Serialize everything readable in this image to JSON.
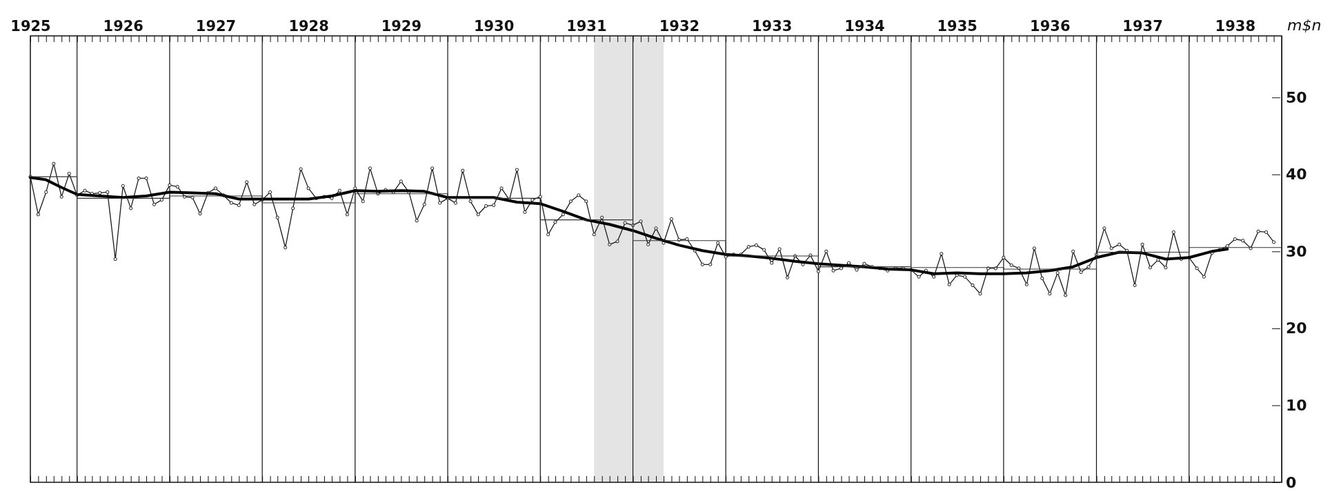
{
  "chart_data": {
    "type": "line",
    "ylabel": "m$n",
    "x": [
      "1925-07",
      "1925-08",
      "1925-09",
      "1925-10",
      "1925-11",
      "1925-12",
      "1926-01",
      "1926-02",
      "1926-03",
      "1926-04",
      "1926-05",
      "1926-06",
      "1926-07",
      "1926-08",
      "1926-09",
      "1926-10",
      "1926-11",
      "1926-12",
      "1927-01",
      "1927-02",
      "1927-03",
      "1927-04",
      "1927-05",
      "1927-06",
      "1927-07",
      "1927-08",
      "1927-09",
      "1927-10",
      "1927-11",
      "1927-12",
      "1928-01",
      "1928-02",
      "1928-03",
      "1928-04",
      "1928-05",
      "1928-06",
      "1928-07",
      "1928-08",
      "1928-09",
      "1928-10",
      "1928-11",
      "1928-12",
      "1929-01",
      "1929-02",
      "1929-03",
      "1929-04",
      "1929-05",
      "1929-06",
      "1929-07",
      "1929-08",
      "1929-09",
      "1929-10",
      "1929-11",
      "1929-12",
      "1930-01",
      "1930-02",
      "1930-03",
      "1930-04",
      "1930-05",
      "1930-06",
      "1930-07",
      "1930-08",
      "1930-09",
      "1930-10",
      "1930-11",
      "1930-12",
      "1931-01",
      "1931-02",
      "1931-03",
      "1931-04",
      "1931-05",
      "1931-06",
      "1931-07",
      "1931-08",
      "1931-09",
      "1931-10",
      "1931-11",
      "1931-12",
      "1932-01",
      "1932-02",
      "1932-03",
      "1932-04",
      "1932-05",
      "1932-06",
      "1932-07",
      "1932-08",
      "1932-09",
      "1932-10",
      "1932-11",
      "1932-12",
      "1933-01",
      "1933-02",
      "1933-03",
      "1933-04",
      "1933-05",
      "1933-06",
      "1933-07",
      "1933-08",
      "1933-09",
      "1933-10",
      "1933-11",
      "1933-12",
      "1934-01",
      "1934-02",
      "1934-03",
      "1934-04",
      "1934-05",
      "1934-06",
      "1934-07",
      "1934-08",
      "1934-09",
      "1934-10",
      "1934-11",
      "1934-12",
      "1935-01",
      "1935-02",
      "1935-03",
      "1935-04",
      "1935-05",
      "1935-06",
      "1935-07",
      "1935-08",
      "1935-09",
      "1935-10",
      "1935-11",
      "1935-12",
      "1936-01",
      "1936-02",
      "1936-03",
      "1936-04",
      "1936-05",
      "1936-06",
      "1936-07",
      "1936-08",
      "1936-09",
      "1936-10",
      "1936-11",
      "1936-12",
      "1937-01",
      "1937-02",
      "1937-03",
      "1937-04",
      "1937-05",
      "1937-06",
      "1937-07",
      "1937-08",
      "1937-09",
      "1937-10",
      "1937-11",
      "1937-12",
      "1938-01",
      "1938-02",
      "1938-03",
      "1938-04",
      "1938-05",
      "1938-06",
      "1938-07",
      "1938-08",
      "1938-09",
      "1938-10",
      "1938-11",
      "1938-12"
    ],
    "series": [
      {
        "marker": "circle",
        "color": "#1a1a1a",
        "values": [
          39.7,
          34.8,
          37.7,
          41.4,
          37.1,
          40.1,
          37.3,
          37.9,
          37.5,
          37.6,
          37.7,
          29.0,
          38.5,
          35.6,
          39.5,
          39.5,
          36.1,
          36.7,
          38.6,
          38.4,
          37.1,
          37.0,
          34.9,
          37.6,
          38.2,
          37.3,
          36.3,
          36.0,
          39.0,
          36.1,
          36.7,
          37.7,
          34.4,
          30.5,
          35.6,
          40.7,
          38.2,
          36.9,
          37.1,
          36.9,
          37.9,
          34.8,
          38.2,
          36.5,
          40.8,
          37.5,
          38.0,
          37.7,
          39.1,
          37.7,
          34.0,
          36.1,
          40.8,
          36.3,
          36.9,
          36.3,
          40.5,
          36.5,
          34.8,
          35.9,
          36.0,
          38.2,
          36.7,
          40.6,
          35.1,
          36.7,
          37.1,
          32.2,
          33.8,
          34.8,
          36.5,
          37.3,
          36.5,
          32.2,
          34.4,
          30.9,
          31.3,
          33.7,
          33.4,
          33.9,
          30.9,
          33.0,
          31.1,
          34.2,
          31.5,
          31.6,
          30.1,
          28.3,
          28.3,
          31.1,
          29.3,
          29.6,
          29.6,
          30.6,
          30.8,
          30.2,
          28.5,
          30.3,
          26.6,
          29.4,
          28.3,
          29.5,
          27.4,
          30.0,
          27.5,
          27.8,
          28.5,
          27.6,
          28.4,
          28.0,
          27.8,
          27.5,
          27.8,
          27.8,
          27.6,
          26.7,
          27.5,
          26.7,
          29.7,
          25.7,
          26.9,
          26.7,
          25.6,
          24.5,
          27.8,
          27.8,
          29.2,
          28.2,
          27.8,
          25.7,
          30.4,
          26.5,
          24.5,
          27.2,
          24.3,
          30.0,
          27.3,
          28.0,
          29.6,
          33.0,
          30.4,
          30.9,
          30.1,
          25.6,
          30.9,
          27.9,
          28.9,
          27.9,
          32.5,
          29.0,
          29.2,
          27.8,
          26.7,
          29.8,
          30.2,
          30.7,
          31.6,
          31.4,
          30.4,
          32.6,
          32.5,
          31.2
        ]
      },
      {
        "marker": "none",
        "color": "#000000",
        "x": [
          "1925-07",
          "1925-09",
          "1925-11",
          "1926-01",
          "1926-04",
          "1926-07",
          "1926-10",
          "1927-01",
          "1927-04",
          "1927-07",
          "1927-10",
          "1928-01",
          "1928-04",
          "1928-07",
          "1928-10",
          "1929-01",
          "1929-04",
          "1929-07",
          "1929-10",
          "1930-01",
          "1930-04",
          "1930-07",
          "1930-10",
          "1931-01",
          "1931-04",
          "1931-07",
          "1931-10",
          "1932-01",
          "1932-04",
          "1932-07",
          "1932-10",
          "1933-01",
          "1933-04",
          "1933-07",
          "1933-10",
          "1934-01",
          "1934-04",
          "1934-07",
          "1934-10",
          "1935-01",
          "1935-04",
          "1935-07",
          "1935-10",
          "1936-01",
          "1936-04",
          "1936-07",
          "1936-10",
          "1937-01",
          "1937-04",
          "1937-07",
          "1937-10",
          "1938-01",
          "1938-04",
          "1938-06"
        ],
        "values": [
          39.6,
          39.3,
          38.3,
          37.4,
          37.2,
          37.0,
          37.2,
          37.7,
          37.6,
          37.5,
          36.8,
          36.8,
          36.8,
          36.8,
          37.2,
          37.9,
          37.8,
          37.9,
          37.8,
          37.0,
          37.0,
          37.0,
          36.4,
          36.2,
          35.2,
          34.1,
          33.5,
          32.7,
          31.7,
          30.8,
          30.1,
          29.6,
          29.4,
          29.1,
          28.7,
          28.4,
          28.2,
          28.0,
          27.7,
          27.6,
          27.1,
          27.2,
          27.1,
          27.1,
          27.2,
          27.5,
          28.0,
          29.2,
          29.9,
          29.8,
          29.0,
          29.2,
          30.0,
          30.3
        ]
      },
      {
        "type": "step",
        "marker": "none",
        "color": "#333333",
        "x": [
          "1925-07",
          "1926-01",
          "1927-01",
          "1928-01",
          "1929-01",
          "1930-01",
          "1931-01",
          "1932-01",
          "1933-01",
          "1934-01",
          "1935-01",
          "1936-01",
          "1937-01",
          "1938-01",
          "1939-01"
        ],
        "values": [
          39.7,
          36.9,
          37.2,
          36.3,
          37.5,
          36.9,
          34.1,
          31.4,
          29.4,
          28.0,
          27.9,
          27.7,
          29.9,
          30.5,
          30.5
        ]
      }
    ],
    "xlim": [
      "1925-07",
      "1939-01"
    ],
    "xticks": [
      {
        "value": "1925-07",
        "label": "1925"
      },
      {
        "value": "1925-08",
        "label": null
      },
      {
        "value": "1925-09",
        "label": null
      },
      {
        "value": "1925-10",
        "label": null
      },
      {
        "value": "1925-11",
        "label": null
      },
      {
        "value": "1925-12",
        "label": null
      },
      {
        "value": "1926-01",
        "label": null
      },
      {
        "value": "1926-02",
        "label": null
      },
      {
        "value": "1926-03",
        "label": null
      },
      {
        "value": "1926-04",
        "label": null
      },
      {
        "value": "1926-05",
        "label": null
      },
      {
        "value": "1926-06",
        "label": null
      },
      {
        "value": "1926-07",
        "label": "1926"
      },
      {
        "value": "1926-08",
        "label": null
      },
      {
        "value": "1926-09",
        "label": null
      },
      {
        "value": "1926-10",
        "label": null
      },
      {
        "value": "1926-11",
        "label": null
      },
      {
        "value": "1926-12",
        "label": null
      },
      {
        "value": "1927-01",
        "label": null
      },
      {
        "value": "1927-02",
        "label": null
      },
      {
        "value": "1927-03",
        "label": null
      },
      {
        "value": "1927-04",
        "label": null
      },
      {
        "value": "1927-05",
        "label": null
      },
      {
        "value": "1927-06",
        "label": null
      },
      {
        "value": "1927-07",
        "label": "1927"
      },
      {
        "value": "1927-08",
        "label": null
      },
      {
        "value": "1927-09",
        "label": null
      },
      {
        "value": "1927-10",
        "label": null
      },
      {
        "value": "1927-11",
        "label": null
      },
      {
        "value": "1927-12",
        "label": null
      },
      {
        "value": "1928-01",
        "label": null
      },
      {
        "value": "1928-02",
        "label": null
      },
      {
        "value": "1928-03",
        "label": null
      },
      {
        "value": "1928-04",
        "label": null
      },
      {
        "value": "1928-05",
        "label": null
      },
      {
        "value": "1928-06",
        "label": null
      },
      {
        "value": "1928-07",
        "label": "1928"
      },
      {
        "value": "1928-08",
        "label": null
      },
      {
        "value": "1928-09",
        "label": null
      },
      {
        "value": "1928-10",
        "label": null
      },
      {
        "value": "1928-11",
        "label": null
      },
      {
        "value": "1928-12",
        "label": null
      },
      {
        "value": "1929-01",
        "label": null
      },
      {
        "value": "1929-02",
        "label": null
      },
      {
        "value": "1929-03",
        "label": null
      },
      {
        "value": "1929-04",
        "label": null
      },
      {
        "value": "1929-05",
        "label": null
      },
      {
        "value": "1929-06",
        "label": null
      },
      {
        "value": "1929-07",
        "label": "1929"
      },
      {
        "value": "1929-08",
        "label": null
      },
      {
        "value": "1929-09",
        "label": null
      },
      {
        "value": "1929-10",
        "label": null
      },
      {
        "value": "1929-11",
        "label": null
      },
      {
        "value": "1929-12",
        "label": null
      },
      {
        "value": "1930-01",
        "label": null
      },
      {
        "value": "1930-02",
        "label": null
      },
      {
        "value": "1930-03",
        "label": null
      },
      {
        "value": "1930-04",
        "label": null
      },
      {
        "value": "1930-05",
        "label": null
      },
      {
        "value": "1930-06",
        "label": null
      },
      {
        "value": "1930-07",
        "label": "1930"
      },
      {
        "value": "1930-08",
        "label": null
      },
      {
        "value": "1930-09",
        "label": null
      },
      {
        "value": "1930-10",
        "label": null
      },
      {
        "value": "1930-11",
        "label": null
      },
      {
        "value": "1930-12",
        "label": null
      },
      {
        "value": "1931-01",
        "label": null
      },
      {
        "value": "1931-02",
        "label": null
      },
      {
        "value": "1931-03",
        "label": null
      },
      {
        "value": "1931-04",
        "label": null
      },
      {
        "value": "1931-05",
        "label": null
      },
      {
        "value": "1931-06",
        "label": null
      },
      {
        "value": "1931-07",
        "label": "1931"
      },
      {
        "value": "1931-08",
        "label": null
      },
      {
        "value": "1931-09",
        "label": null
      },
      {
        "value": "1931-10",
        "label": null
      },
      {
        "value": "1931-11",
        "label": null
      },
      {
        "value": "1931-12",
        "label": null
      },
      {
        "value": "1932-01",
        "label": null
      },
      {
        "value": "1932-02",
        "label": null
      },
      {
        "value": "1932-03",
        "label": null
      },
      {
        "value": "1932-04",
        "label": null
      },
      {
        "value": "1932-05",
        "label": null
      },
      {
        "value": "1932-06",
        "label": null
      },
      {
        "value": "1932-07",
        "label": "1932"
      },
      {
        "value": "1932-08",
        "label": null
      },
      {
        "value": "1932-09",
        "label": null
      },
      {
        "value": "1932-10",
        "label": null
      },
      {
        "value": "1932-11",
        "label": null
      },
      {
        "value": "1932-12",
        "label": null
      },
      {
        "value": "1933-01",
        "label": null
      },
      {
        "value": "1933-02",
        "label": null
      },
      {
        "value": "1933-03",
        "label": null
      },
      {
        "value": "1933-04",
        "label": null
      },
      {
        "value": "1933-05",
        "label": null
      },
      {
        "value": "1933-06",
        "label": null
      },
      {
        "value": "1933-07",
        "label": "1933"
      },
      {
        "value": "1933-08",
        "label": null
      },
      {
        "value": "1933-09",
        "label": null
      },
      {
        "value": "1933-10",
        "label": null
      },
      {
        "value": "1933-11",
        "label": null
      },
      {
        "value": "1933-12",
        "label": null
      },
      {
        "value": "1934-01",
        "label": null
      },
      {
        "value": "1934-02",
        "label": null
      },
      {
        "value": "1934-03",
        "label": null
      },
      {
        "value": "1934-04",
        "label": null
      },
      {
        "value": "1934-05",
        "label": null
      },
      {
        "value": "1934-06",
        "label": null
      },
      {
        "value": "1934-07",
        "label": "1934"
      },
      {
        "value": "1934-08",
        "label": null
      },
      {
        "value": "1934-09",
        "label": null
      },
      {
        "value": "1934-10",
        "label": null
      },
      {
        "value": "1934-11",
        "label": null
      },
      {
        "value": "1934-12",
        "label": null
      },
      {
        "value": "1935-01",
        "label": null
      },
      {
        "value": "1935-02",
        "label": null
      },
      {
        "value": "1935-03",
        "label": null
      },
      {
        "value": "1935-04",
        "label": null
      },
      {
        "value": "1935-05",
        "label": null
      },
      {
        "value": "1935-06",
        "label": null
      },
      {
        "value": "1935-07",
        "label": "1935"
      },
      {
        "value": "1935-08",
        "label": null
      },
      {
        "value": "1935-09",
        "label": null
      },
      {
        "value": "1935-10",
        "label": null
      },
      {
        "value": "1935-11",
        "label": null
      },
      {
        "value": "1935-12",
        "label": null
      },
      {
        "value": "1936-01",
        "label": null
      },
      {
        "value": "1936-02",
        "label": null
      },
      {
        "value": "1936-03",
        "label": null
      },
      {
        "value": "1936-04",
        "label": null
      },
      {
        "value": "1936-05",
        "label": null
      },
      {
        "value": "1936-06",
        "label": null
      },
      {
        "value": "1936-07",
        "label": "1936"
      },
      {
        "value": "1936-08",
        "label": null
      },
      {
        "value": "1936-09",
        "label": null
      },
      {
        "value": "1936-10",
        "label": null
      },
      {
        "value": "1936-11",
        "label": null
      },
      {
        "value": "1936-12",
        "label": null
      },
      {
        "value": "1937-01",
        "label": null
      },
      {
        "value": "1937-02",
        "label": null
      },
      {
        "value": "1937-03",
        "label": null
      },
      {
        "value": "1937-04",
        "label": null
      },
      {
        "value": "1937-05",
        "label": null
      },
      {
        "value": "1937-06",
        "label": null
      },
      {
        "value": "1937-07",
        "label": "1937"
      },
      {
        "value": "1937-08",
        "label": null
      },
      {
        "value": "1937-09",
        "label": null
      },
      {
        "value": "1937-10",
        "label": null
      },
      {
        "value": "1937-11",
        "label": null
      },
      {
        "value": "1937-12",
        "label": null
      },
      {
        "value": "1938-01",
        "label": null
      },
      {
        "value": "1938-02",
        "label": null
      },
      {
        "value": "1938-03",
        "label": null
      },
      {
        "value": "1938-04",
        "label": null
      },
      {
        "value": "1938-05",
        "label": null
      },
      {
        "value": "1938-06",
        "label": null
      },
      {
        "value": "1938-07",
        "label": "1938"
      },
      {
        "value": "1938-08",
        "label": null
      },
      {
        "value": "1938-09",
        "label": null
      },
      {
        "value": "1938-10",
        "label": null
      },
      {
        "value": "1938-11",
        "label": null
      },
      {
        "value": "1938-12",
        "label": null
      }
    ],
    "ylim": [
      0,
      58
    ],
    "yticks": [
      0,
      10,
      20,
      30,
      40,
      50
    ],
    "grid": false,
    "bands": [
      {
        "axis": "x",
        "from": "1931-08",
        "to": "1932-05",
        "color": "#e4e4e4"
      }
    ],
    "ref_lines": [
      {
        "axis": "x",
        "value": "1926-01"
      },
      {
        "axis": "x",
        "value": "1927-01"
      },
      {
        "axis": "x",
        "value": "1928-01"
      },
      {
        "axis": "x",
        "value": "1929-01"
      },
      {
        "axis": "x",
        "value": "1930-01"
      },
      {
        "axis": "x",
        "value": "1931-01"
      },
      {
        "axis": "x",
        "value": "1932-01"
      },
      {
        "axis": "x",
        "value": "1933-01"
      },
      {
        "axis": "x",
        "value": "1934-01"
      },
      {
        "axis": "x",
        "value": "1935-01"
      },
      {
        "axis": "x",
        "value": "1936-01"
      },
      {
        "axis": "x",
        "value": "1937-01"
      },
      {
        "axis": "x",
        "value": "1938-01"
      }
    ]
  }
}
